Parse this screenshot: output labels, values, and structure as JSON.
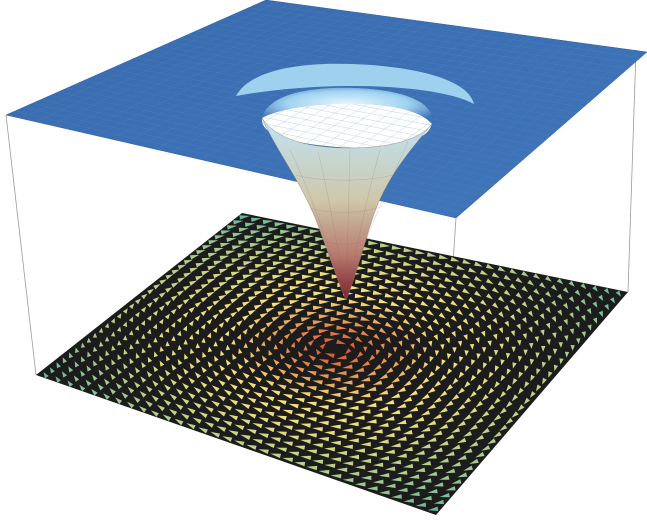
{
  "scene": {
    "kind": "3D surface plot of a funnel-shaped vortex above a vector field floor",
    "colors": {
      "background": "#ffffff",
      "plane": "#3f73b7",
      "plane_edge": "#2f5f9f",
      "funnel_top": "#bfe3f7",
      "funnel_mid": "#c9c2a4",
      "funnel_bottom": "#8a1f2e",
      "floor": "#1c1c1c",
      "box_line": "#9a9a9a",
      "arrow_core": "#d94a2a",
      "arrow_mid": "#f7e27a",
      "arrow_outer": "#5fb6a0"
    },
    "field": {
      "style": "circulating arrows (vortex)",
      "grid_count": 33
    }
  }
}
